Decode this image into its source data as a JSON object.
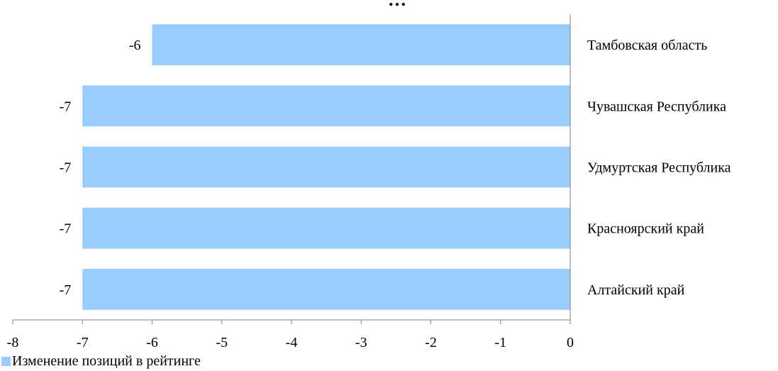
{
  "chart_data": {
    "type": "bar",
    "orientation": "horizontal",
    "title": "…",
    "categories": [
      "Тамбовская область",
      "Чувашская Республика",
      "Удмуртская Республика",
      "Красноярский край",
      "Алтайский край"
    ],
    "series": [
      {
        "name": "Изменение позиций в рейтинге",
        "values": [
          -6,
          -7,
          -7,
          -7,
          -7
        ]
      }
    ],
    "xlim": [
      -8,
      0
    ],
    "xticks": [
      -8,
      -7,
      -6,
      -5,
      -4,
      -3,
      -2,
      -1,
      0
    ],
    "grid": false,
    "legend_position": "bottom-left",
    "bar_color": "#99CCFF"
  }
}
